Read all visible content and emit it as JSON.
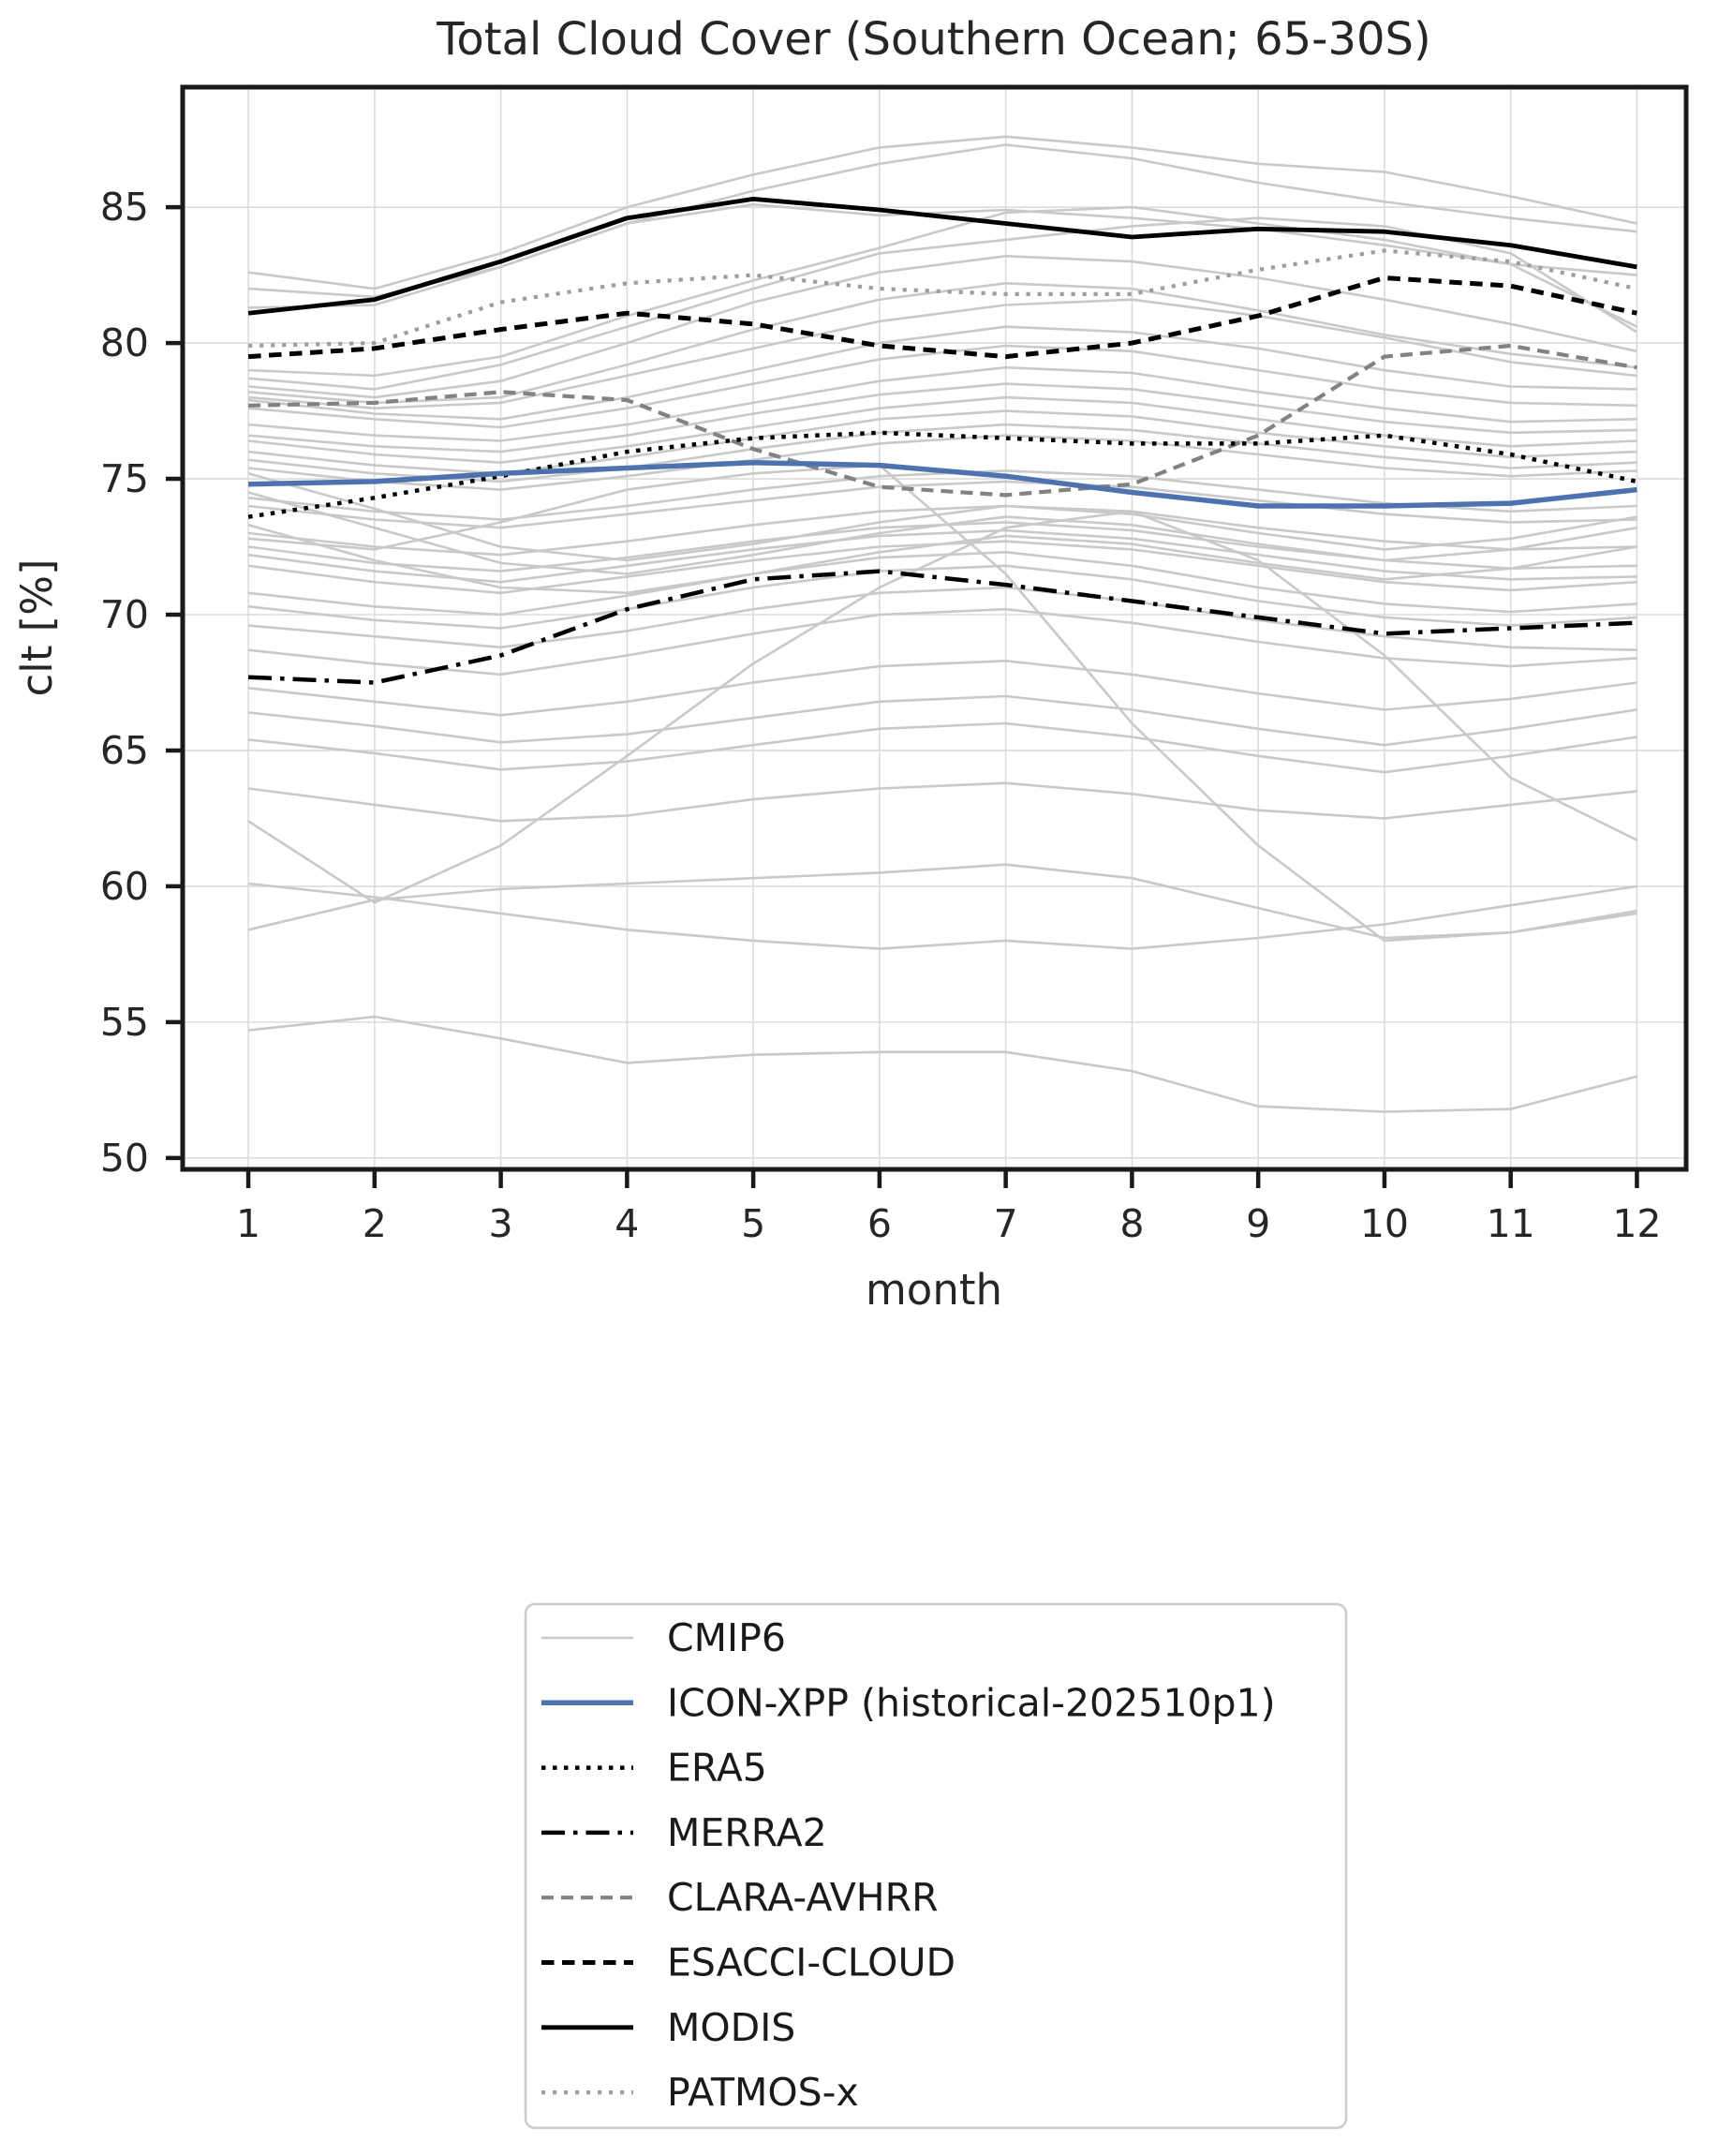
{
  "chart_data": {
    "type": "line",
    "title": "Total Cloud Cover (Southern Ocean; 65-30S)",
    "xlabel": "month",
    "ylabel": "clt [%]",
    "x": [
      1,
      2,
      3,
      4,
      5,
      6,
      7,
      8,
      9,
      10,
      11,
      12
    ],
    "xlim": [
      0.48,
      12.39
    ],
    "ylim": [
      49.58,
      89.42
    ],
    "xticks": [
      1,
      2,
      3,
      4,
      5,
      6,
      7,
      8,
      9,
      10,
      11,
      12
    ],
    "xtick_labels": [
      "1",
      "2",
      "3",
      "4",
      "5",
      "6",
      "7",
      "8",
      "9",
      "10",
      "11",
      "12"
    ],
    "yticks": [
      50,
      55,
      60,
      65,
      70,
      75,
      80,
      85
    ],
    "ytick_labels": [
      "50",
      "55",
      "60",
      "65",
      "70",
      "75",
      "80",
      "85"
    ],
    "grid": true,
    "grid_color": "#dcdcdc",
    "spine_color": "#1a1a1a",
    "background_color": "#ffffff",
    "cmip6": {
      "label": "CMIP6",
      "color": "#c9c9c9",
      "width": 2.6,
      "dash": "",
      "members": [
        [
          82.6,
          82.0,
          83.3,
          85.0,
          86.2,
          87.2,
          87.6,
          87.2,
          86.6,
          86.3,
          85.4,
          84.4
        ],
        [
          82.0,
          81.7,
          82.8,
          84.4,
          85.6,
          86.6,
          87.3,
          86.8,
          85.9,
          85.2,
          84.6,
          84.1
        ],
        [
          81.3,
          81.4,
          82.8,
          84.4,
          85.1,
          84.7,
          84.9,
          84.6,
          84.2,
          83.6,
          82.9,
          82.5
        ],
        [
          79.0,
          78.8,
          79.5,
          81.0,
          82.3,
          83.5,
          84.8,
          85.0,
          84.4,
          83.8,
          82.9,
          80.6
        ],
        [
          78.7,
          78.3,
          79.2,
          80.6,
          82.0,
          83.3,
          83.8,
          84.3,
          84.6,
          84.3,
          83.3,
          80.4
        ],
        [
          78.4,
          78.0,
          78.6,
          80.0,
          81.5,
          82.6,
          83.2,
          83.0,
          82.4,
          81.6,
          80.7,
          79.7
        ],
        [
          78.2,
          77.8,
          78.0,
          79.2,
          80.5,
          81.6,
          82.2,
          82.0,
          81.2,
          80.3,
          79.6,
          79.1
        ],
        [
          78.0,
          77.6,
          77.8,
          78.8,
          79.8,
          80.8,
          81.4,
          81.6,
          81.0,
          80.2,
          79.3,
          78.8
        ],
        [
          77.9,
          77.4,
          77.2,
          78.0,
          79.0,
          80.0,
          80.6,
          80.4,
          79.8,
          79.0,
          78.4,
          78.3
        ],
        [
          77.6,
          77.2,
          76.9,
          77.6,
          78.5,
          79.4,
          79.9,
          79.7,
          79.0,
          78.3,
          77.8,
          77.7
        ],
        [
          77.0,
          76.6,
          76.4,
          77.0,
          77.8,
          78.6,
          79.1,
          78.9,
          78.2,
          77.6,
          77.1,
          77.2
        ],
        [
          76.6,
          76.2,
          76.0,
          76.6,
          77.4,
          78.1,
          78.5,
          78.3,
          77.7,
          77.1,
          76.7,
          76.8
        ],
        [
          76.4,
          75.9,
          75.6,
          76.2,
          76.9,
          77.6,
          78.0,
          77.8,
          77.2,
          76.6,
          76.2,
          76.4
        ],
        [
          76.0,
          75.5,
          75.2,
          75.8,
          76.5,
          77.2,
          77.5,
          77.3,
          76.7,
          76.2,
          75.8,
          76.0
        ],
        [
          75.7,
          75.2,
          74.9,
          75.4,
          76.1,
          76.7,
          77.0,
          76.8,
          76.3,
          75.8,
          75.4,
          75.6
        ],
        [
          75.4,
          74.9,
          74.6,
          75.1,
          75.7,
          76.3,
          76.6,
          76.4,
          75.9,
          75.4,
          75.1,
          75.3
        ],
        [
          75.2,
          73.9,
          72.5,
          72.0,
          72.6,
          73.4,
          74.0,
          73.7,
          73.0,
          72.4,
          72.8,
          73.6
        ],
        [
          74.5,
          73.2,
          71.9,
          71.5,
          72.2,
          73.0,
          73.6,
          73.3,
          72.6,
          72.0,
          72.4,
          73.2
        ],
        [
          74.3,
          73.8,
          73.5,
          74.0,
          74.6,
          75.1,
          75.3,
          75.1,
          74.6,
          74.1,
          73.8,
          74.0
        ],
        [
          74.0,
          73.5,
          73.2,
          73.7,
          74.2,
          74.7,
          74.9,
          74.7,
          74.2,
          73.7,
          73.4,
          73.5
        ],
        [
          73.3,
          72.0,
          71.0,
          70.8,
          71.5,
          72.3,
          72.9,
          72.6,
          71.9,
          71.3,
          71.7,
          72.5
        ],
        [
          73.0,
          72.5,
          72.2,
          72.7,
          73.3,
          73.8,
          74.0,
          73.8,
          73.2,
          72.7,
          72.4,
          72.5
        ],
        [
          72.8,
          72.4,
          73.4,
          74.6,
          75.2,
          75.5,
          71.5,
          66.0,
          61.5,
          58.0,
          58.3,
          59.1
        ],
        [
          72.5,
          71.9,
          71.6,
          72.1,
          72.7,
          73.2,
          73.4,
          73.1,
          72.5,
          72.0,
          71.7,
          71.8
        ],
        [
          72.2,
          71.6,
          71.2,
          71.8,
          72.4,
          72.9,
          73.1,
          72.8,
          72.2,
          71.6,
          71.3,
          71.4
        ],
        [
          71.8,
          71.2,
          70.8,
          71.4,
          72.0,
          72.5,
          72.7,
          72.4,
          71.8,
          71.2,
          70.9,
          71.2
        ],
        [
          70.8,
          70.3,
          70.0,
          70.7,
          71.5,
          72.1,
          72.3,
          71.8,
          71.0,
          70.4,
          70.1,
          70.4
        ],
        [
          70.3,
          69.8,
          69.5,
          70.2,
          71.0,
          71.6,
          71.8,
          71.3,
          70.5,
          69.9,
          69.6,
          69.9
        ],
        [
          69.6,
          69.2,
          68.8,
          69.4,
          70.2,
          70.8,
          71.0,
          70.5,
          69.8,
          69.2,
          68.8,
          68.7
        ],
        [
          68.7,
          68.2,
          67.8,
          68.5,
          69.3,
          70.0,
          70.2,
          69.7,
          69.0,
          68.4,
          68.1,
          68.4
        ],
        [
          67.3,
          66.8,
          66.3,
          66.8,
          67.5,
          68.1,
          68.3,
          67.8,
          67.1,
          66.5,
          66.9,
          67.5
        ],
        [
          66.4,
          65.9,
          65.3,
          65.6,
          66.2,
          66.8,
          67.0,
          66.5,
          65.8,
          65.2,
          65.8,
          66.5
        ],
        [
          65.4,
          64.9,
          64.3,
          64.6,
          65.2,
          65.8,
          66.0,
          65.5,
          64.8,
          64.2,
          64.8,
          65.5
        ],
        [
          63.6,
          63.0,
          62.4,
          62.6,
          63.2,
          63.6,
          63.8,
          63.4,
          62.8,
          62.5,
          63.0,
          63.5
        ],
        [
          62.4,
          59.4,
          61.5,
          64.8,
          68.2,
          71.0,
          73.2,
          73.8,
          72.0,
          68.5,
          64.0,
          61.7
        ],
        [
          60.1,
          59.6,
          59.0,
          58.4,
          58.0,
          57.7,
          58.0,
          57.7,
          58.1,
          58.6,
          59.3,
          60.0
        ],
        [
          58.4,
          59.5,
          59.9,
          60.1,
          60.3,
          60.5,
          60.8,
          60.3,
          59.2,
          58.1,
          58.3,
          59.0
        ],
        [
          54.7,
          55.2,
          54.4,
          53.5,
          53.8,
          53.9,
          53.9,
          53.2,
          51.9,
          51.7,
          51.8,
          53.0
        ]
      ]
    },
    "series": [
      {
        "id": "icon-xpp",
        "label": "ICON-XPP (historical-202510p1)",
        "color": "#4c72b0",
        "width": 5.5,
        "dash": "",
        "values": [
          74.8,
          74.9,
          75.2,
          75.4,
          75.6,
          75.5,
          75.1,
          74.5,
          74.0,
          74.0,
          74.1,
          74.6
        ]
      },
      {
        "id": "era5",
        "label": "ERA5",
        "color": "#000000",
        "width": 4.5,
        "dash": "4.5 7.5",
        "values": [
          73.6,
          74.3,
          75.1,
          76.0,
          76.5,
          76.7,
          76.5,
          76.3,
          76.3,
          76.6,
          75.9,
          74.9
        ]
      },
      {
        "id": "merra2",
        "label": "MERRA2",
        "color": "#000000",
        "width": 4.5,
        "dash": "25 9 4.5 9",
        "values": [
          67.7,
          67.5,
          68.5,
          70.2,
          71.3,
          71.6,
          71.1,
          70.5,
          69.9,
          69.3,
          69.5,
          69.7
        ]
      },
      {
        "id": "clara-avhrr",
        "label": "CLARA-AVHRR",
        "color": "#828282",
        "width": 4.2,
        "dash": "13 8",
        "values": [
          77.7,
          77.8,
          78.2,
          77.9,
          76.1,
          74.7,
          74.4,
          74.8,
          76.6,
          79.5,
          79.9,
          79.1
        ]
      },
      {
        "id": "esacci-cloud",
        "label": "ESACCI-CLOUD",
        "color": "#000000",
        "width": 5,
        "dash": "13.5 8.5",
        "values": [
          79.5,
          79.8,
          80.5,
          81.1,
          80.7,
          79.9,
          79.5,
          80.0,
          81.0,
          82.4,
          82.1,
          81.1
        ]
      },
      {
        "id": "modis",
        "label": "MODIS",
        "color": "#000000",
        "width": 4.8,
        "dash": "",
        "values": [
          81.1,
          81.6,
          83.0,
          84.6,
          85.3,
          84.9,
          84.4,
          83.9,
          84.2,
          84.1,
          83.6,
          82.8
        ]
      },
      {
        "id": "patmos-x",
        "label": "PATMOS-x",
        "color": "#9e9e9e",
        "width": 4.2,
        "dash": "4.2 7.8",
        "values": [
          79.9,
          80.0,
          81.5,
          82.2,
          82.5,
          82.0,
          81.8,
          81.8,
          82.7,
          83.4,
          83.0,
          82.0
        ]
      }
    ],
    "legend": {
      "order": [
        "cmip6",
        "icon-xpp",
        "era5",
        "merra2",
        "clara-avhrr",
        "esacci-cloud",
        "modis",
        "patmos-x"
      ],
      "border_color": "#cccccc",
      "position": "below"
    }
  }
}
